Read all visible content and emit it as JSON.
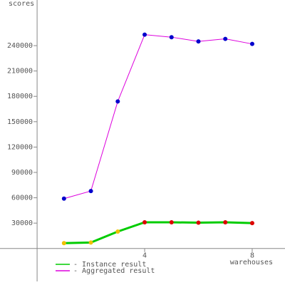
{
  "chart_data": {
    "type": "line",
    "y_label": "scores",
    "x_label": "warehouses",
    "x": [
      1,
      2,
      3,
      4,
      5,
      6,
      7,
      8
    ],
    "series": [
      {
        "name": "- Instance result",
        "color": "#00cc00",
        "values": [
          6300,
          7000,
          20000,
          31000,
          31000,
          30500,
          31000,
          30000
        ],
        "marker_colors": [
          "#f0c000",
          "#f0c000",
          "#f0c000",
          "#dd0000",
          "#dd0000",
          "#dd0000",
          "#dd0000",
          "#dd0000"
        ]
      },
      {
        "name": "- Aggregated result",
        "color": "#dd00dd",
        "values": [
          59000,
          68000,
          174000,
          253000,
          250000,
          245000,
          248000,
          242000
        ],
        "marker_colors": [
          "#0000cc",
          "#0000cc",
          "#0000cc",
          "#0000cc",
          "#0000cc",
          "#0000cc",
          "#0000cc",
          "#0000cc"
        ]
      }
    ],
    "xlim": [
      -1.38,
      9.22
    ],
    "ylim": [
      -39000,
      294000
    ],
    "xticks": [
      4,
      8
    ],
    "yticks": [
      30000,
      60000,
      90000,
      120000,
      150000,
      180000,
      210000,
      240000
    ]
  }
}
